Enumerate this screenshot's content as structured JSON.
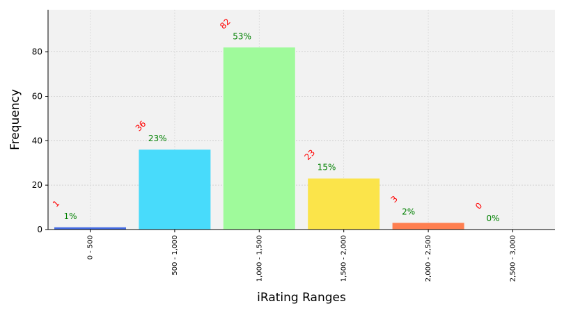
{
  "chart_data": {
    "type": "bar",
    "categories": [
      "0 - 500",
      "500 - 1,000",
      "1,000 - 1,500",
      "1,500 - 2,000",
      "2,000 - 2,500",
      "2,500 - 3,000"
    ],
    "values": [
      1,
      36,
      82,
      23,
      3,
      0
    ],
    "count_labels": [
      "1",
      "36",
      "82",
      "23",
      "3",
      "0"
    ],
    "percent_labels": [
      "1%",
      "23%",
      "53%",
      "15%",
      "2%",
      "0%"
    ],
    "bar_colors": [
      "#4169e1",
      "#48dbfb",
      "#9ffa9b",
      "#fbe44a",
      "#ff7f50",
      "#c71585"
    ],
    "count_label_color": "#ff0000",
    "percent_label_color": "#008000",
    "plot_background": "#f2f2f2",
    "grid": true,
    "xlabel": "iRating Ranges",
    "ylabel": "Frequency",
    "ylim": [
      0,
      99
    ],
    "yticks": [
      0,
      20,
      40,
      60,
      80
    ],
    "ytick_labels": [
      "0",
      "20",
      "40",
      "60",
      "80"
    ]
  }
}
